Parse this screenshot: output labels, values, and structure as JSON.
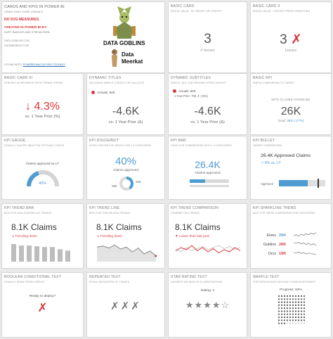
{
  "intro": {
    "title": "CARDS AND KPIS IN POWER BI",
    "subtitle": "USING ONLY CORE VISUALS",
    "no_svg": "NO SVG MEASURES",
    "created_label": "CREATED IN POWER BI BY:",
    "authors": "KURT BUHLER AND STEFAN REŠL",
    "link1": "DATA-GOBLINS.COM",
    "link2": "DATAMEERKAT.COM",
    "github_label": "GITHUB REPO:",
    "github_link": "POWERBI-MACGUYVER-TOOLBOX",
    "logo_goblins": "DATA GOBLINS",
    "logo_meerkat_1": "Data",
    "logo_meerkat_2": "Meerkat"
  },
  "basic_card": {
    "title": "BASIC CARD",
    "subtitle": "SINGLE VALUE - NO TARGET OR CONTEXT",
    "value": "3",
    "label": "# Issues"
  },
  "basic_card_2": {
    "title": "BASIC CARD II",
    "subtitle": "SINGLE VALUE - CONTEXT FROM FORMATTING",
    "value": "3",
    "mark": "✗",
    "label": "Issues"
  },
  "basic_card_3": {
    "title": "BASIC CARD III",
    "subtitle": "PERCENT ACHIEVEMENT WITH FORMAT STRING",
    "value": "↓ 4.3%",
    "label": "vs. 1 Year Prior (%)"
  },
  "dynamic_titles": {
    "title": "DYNAMIC TITLES",
    "subtitle": "INCLUDING SUBTLE CONTEXT OR CALLOUTS",
    "legend": "Actuals: 66K",
    "value": "-4.6K",
    "label": "vs. 1 Year Prior (Δ)"
  },
  "dynamic_subtitles": {
    "title": "DYNAMIC SUBTITLES",
    "subtitle": "SUBTLE, BUT CAN PROVIDE EXTRA CONTEXT",
    "legend1": "Actuals: 66K",
    "legend2": "1 Year Prior: 70K ✗ (-6%)",
    "value": "-4.6K",
    "label": "vs. 1 Year Prior (Δ)"
  },
  "basic_kpi": {
    "title": "BASIC KPI",
    "subtitle": "SIMPLE COMPARISON TO TARGET",
    "header": "MTD CLAIMS HANDLED",
    "value": "26K",
    "goal_label": "Goal: ",
    "goal_value": "36K (-27%)"
  },
  "kpi_gauge": {
    "title": "KPI GAUGE",
    "subtitle": "VISUALLY GAUGES ABOUT AN OPTIONAL CHOICE",
    "label": "Claims approved vs LY",
    "value": "40%"
  },
  "kpi_doughnut": {
    "title": "KPI DOUGHNUT",
    "subtitle": "GOOD FOR PART-OF-WHOLE FOR 2-3 CATEGORIES",
    "value": "40%",
    "label": "Claims approved",
    "left_value": "29K",
    "right_value": "26K",
    "percent": 40
  },
  "kpi_bar": {
    "title": "KPI BAR",
    "subtitle": "GOOD FOR COMPARISONS WITH 1-3 CATEGORIES",
    "value": "26.4K",
    "label": "Claims approved",
    "fill_percent": 40
  },
  "kpi_bullet": {
    "title": "KPI BULLET",
    "subtitle": "TARGET COMPARISONS",
    "value": "26.4K Approved Claims",
    "change": "↗ 8% vs. LY",
    "bar_label": "Approved",
    "fill_percent": 62
  },
  "kpi_trend_bar": {
    "title": "KPI TREND BAR",
    "subtitle": "BEST FOR NON-CONTINUOUS TRENDS",
    "value": "8.1K Claims",
    "trend": "↘ Trending down",
    "bars": [
      24,
      22,
      22,
      21,
      20,
      20,
      17,
      15
    ]
  },
  "kpi_trend_line": {
    "title": "KPI TREND LINE",
    "subtitle": "BEST FOR CONTINUOUS TRENDS",
    "value": "8.1K Claims",
    "trend": "↘ Trending down",
    "points": [
      14,
      15,
      13,
      16,
      12,
      14,
      9,
      13,
      7,
      10,
      5
    ]
  },
  "kpi_trend_comparison": {
    "title": "KPI TREND COMPARISON",
    "subtitle": "COMBINE TWO TRENDS",
    "value": "8.1K Claims",
    "trend": "▼ Lower than last year",
    "current": [
      9,
      12,
      10,
      14,
      9,
      12,
      8,
      11,
      7,
      10,
      8,
      12,
      9
    ],
    "prior": [
      10,
      8,
      12,
      9,
      11,
      13,
      10,
      12,
      14,
      11,
      13,
      10,
      12
    ]
  },
  "kpi_sparkline": {
    "title": "KPI SPARKLINE TREND",
    "subtitle": "BEST FOR TREND COMPARISON FOR CATEGORIES",
    "rows": [
      {
        "name": "Elves",
        "value": "20K",
        "color": "#4f9cd3"
      },
      {
        "name": "Goblins",
        "value": "26K",
        "color": "#d9373d"
      },
      {
        "name": "Orcs",
        "value": "19K",
        "color": "#d9373d"
      }
    ]
  },
  "boolean_text": {
    "title": "BOOLEAN CONDITIONAL TEXT",
    "subtitle": "VISUALLY SHOW YES/NO RESULT",
    "label": "Ready to deploy?",
    "value": "✗"
  },
  "repeated_text": {
    "title": "REPEATED TEXT",
    "subtitle": "VISUAL INDICATORS OF COUNTS",
    "value": "✗✗✗"
  },
  "star_rating": {
    "title": "STAR RATING TEXT",
    "subtitle": "DISCRETE RATINGS OR CLASSIFICATIONS",
    "label": "Rating: 4",
    "stars": "★★★★☆"
  },
  "waffle_text": {
    "title": "WAFFLE TEXT",
    "subtitle": "FOR PERCENTAGES WITHOUT OVERACHIEVEMENT",
    "label": "Progress: 93%",
    "percent": 93
  },
  "colors": {
    "red": "#d9373d",
    "blue": "#4f9cd3",
    "gray": "#bdbdbd",
    "navy": "#3c5a78"
  }
}
